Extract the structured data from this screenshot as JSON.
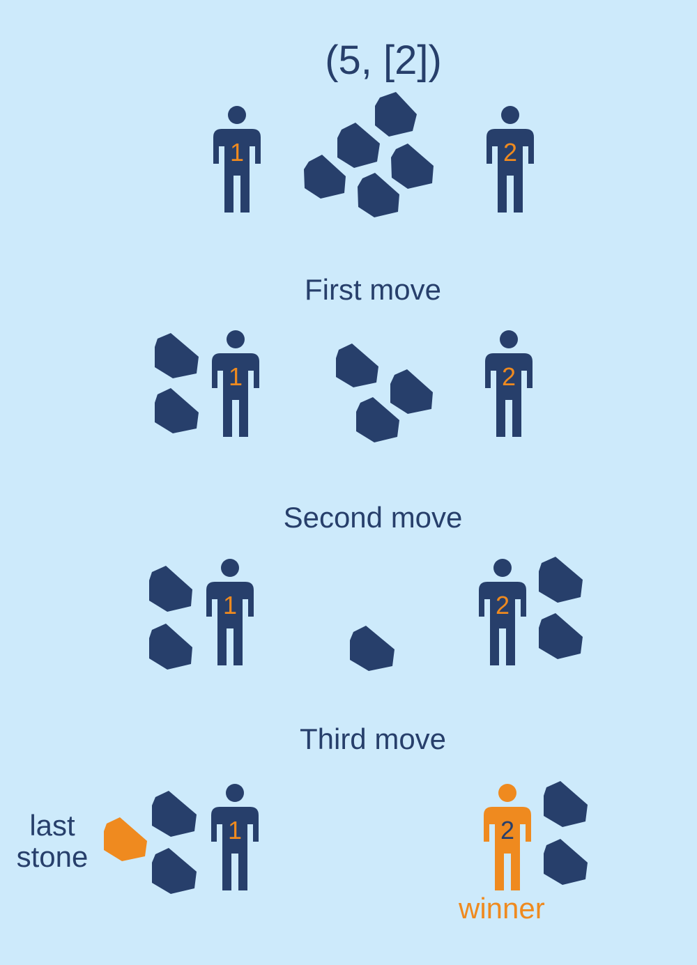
{
  "title": "(5, [2])",
  "steps": {
    "first": "First move",
    "second": "Second move",
    "third": "Third move"
  },
  "players": {
    "one": "1",
    "two": "2"
  },
  "annotations": {
    "last_stone_line1": "last",
    "last_stone_line2": "stone",
    "winner": "winner"
  },
  "colors": {
    "background": "#cdeafb",
    "ink": "#273f6b",
    "highlight": "#ef8a1f"
  }
}
